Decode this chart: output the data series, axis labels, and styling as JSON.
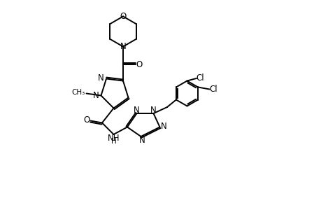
{
  "background_color": "#ffffff",
  "line_color": "#000000",
  "line_width": 1.4,
  "font_size": 8.5,
  "xlim": [
    -1.5,
    9.5
  ],
  "ylim": [
    -1.0,
    9.0
  ],
  "figsize": [
    4.6,
    3.0
  ],
  "dpi": 100
}
